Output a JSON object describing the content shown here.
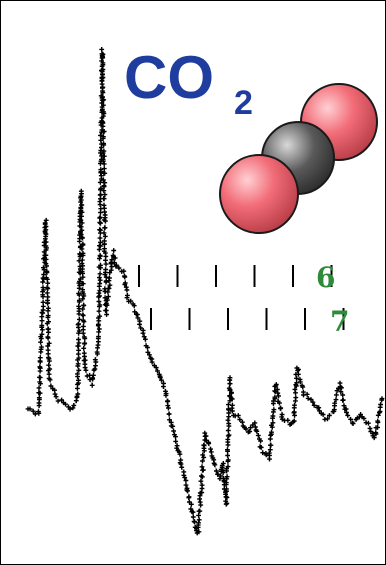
{
  "formula": {
    "main": "CO",
    "subscript": "2"
  },
  "molecule": {
    "atoms": [
      "O",
      "C",
      "O"
    ],
    "oxygen_color": "#f26d78",
    "carbon_color": "#5a5a5a"
  },
  "colors": {
    "formula": "#1f3d9e",
    "label": "#2e8b3a",
    "trace": "#000000",
    "trace_line": "#bdbdbd"
  },
  "combs": [
    {
      "label": "6",
      "tick_count": 6
    },
    {
      "label": "7",
      "tick_count": 6
    }
  ],
  "chart_data": {
    "type": "scatter",
    "title": "",
    "xlabel": "",
    "ylabel": "",
    "grid": false,
    "x_range": [
      0,
      100
    ],
    "y_range": [
      0,
      100
    ],
    "series": [
      {
        "x": [
          0,
          3,
          5,
          6,
          7,
          8,
          10,
          12,
          14,
          15,
          16,
          18,
          20,
          21,
          22,
          24,
          25,
          27,
          28,
          30,
          32,
          33,
          35,
          37,
          39,
          40,
          42,
          44,
          46,
          48,
          50,
          52,
          54,
          55,
          56,
          57,
          58,
          60,
          62,
          64,
          66,
          68,
          70,
          71,
          72,
          74,
          75,
          76,
          78,
          80,
          82,
          84,
          86,
          88,
          90,
          92,
          94,
          96,
          98,
          100
        ],
        "y": [
          27,
          26,
          64,
          33,
          31,
          29,
          28,
          27,
          29,
          70,
          35,
          32,
          40,
          98,
          46,
          58,
          55,
          54,
          49,
          47,
          43,
          41,
          36,
          34,
          30,
          25,
          20,
          14,
          8,
          2,
          22,
          18,
          13,
          16,
          8,
          33,
          26,
          25,
          22,
          24,
          19,
          17,
          32,
          28,
          25,
          24,
          24,
          35,
          30,
          29,
          27,
          25,
          26,
          32,
          26,
          24,
          26,
          24,
          21,
          29
        ]
      }
    ]
  }
}
